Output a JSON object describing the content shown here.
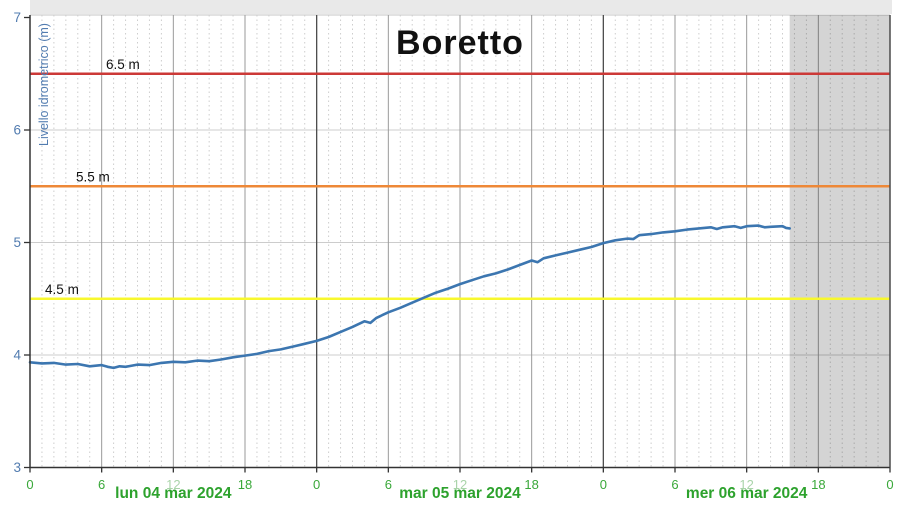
{
  "window": {
    "background": "#ffffff",
    "top_strip_color": "#e9e9e9",
    "plot_border_color": "#c4c4c4"
  },
  "chart_data": {
    "type": "line",
    "title": "Boretto",
    "y_axis": {
      "label": "Livello idrometrico (m)",
      "min": 3,
      "max": 7,
      "ticks": [
        "3",
        "4",
        "5",
        "6",
        "7"
      ],
      "text_color": "#527cb0"
    },
    "x_axis": {
      "ticks": [
        {
          "hour": 0,
          "label": "0",
          "muted": false
        },
        {
          "hour": 6,
          "label": "6",
          "muted": false
        },
        {
          "hour": 12,
          "label": "12",
          "muted": true
        },
        {
          "hour": 18,
          "label": "18",
          "muted": false
        },
        {
          "hour": 24,
          "label": "0",
          "muted": false
        },
        {
          "hour": 30,
          "label": "6",
          "muted": false
        },
        {
          "hour": 36,
          "label": "12",
          "muted": true
        },
        {
          "hour": 42,
          "label": "18",
          "muted": false
        },
        {
          "hour": 48,
          "label": "0",
          "muted": false
        },
        {
          "hour": 54,
          "label": "6",
          "muted": false
        },
        {
          "hour": 60,
          "label": "12",
          "muted": true
        },
        {
          "hour": 66,
          "label": "18",
          "muted": false
        },
        {
          "hour": 72,
          "label": "0",
          "muted": false
        }
      ],
      "date_labels": [
        {
          "text": "lun 04 mar 2024",
          "center_hour": 12
        },
        {
          "text": "mar 05 mar 2024",
          "center_hour": 36
        },
        {
          "text": "mer 06 mar 2024",
          "center_hour": 60
        }
      ],
      "tick_color": "#3aa83a",
      "muted_tick_color": "#aad4aa",
      "date_color": "#2da22d"
    },
    "grid": {
      "minor_step_hours": 1,
      "major_step_hours": 6,
      "day_boundary_hours": [
        24,
        48
      ],
      "minor_color": "#cdcdcd",
      "major_color": "#9a9a9a",
      "day_color": "#4c4c4c",
      "horizontal_color": "#cccccc",
      "horizontal_values": [
        4,
        5,
        6
      ],
      "axis_color": "#333333",
      "right_border_color": "#4c4c4c"
    },
    "thresholds": [
      {
        "label": "6.5 m",
        "value": 6.5,
        "color": "#cc3937",
        "label_hour": 6.36
      },
      {
        "label": "5.5 m",
        "value": 5.5,
        "color": "#ee8837",
        "label_hour": 3.85
      },
      {
        "label": "4.5 m",
        "value": 4.5,
        "color": "#f8f82e",
        "label_hour": 1.26
      }
    ],
    "series": [
      {
        "name": "Livello idrometrico",
        "color": "#3c76b0",
        "points": [
          [
            0,
            3.935
          ],
          [
            1,
            3.925
          ],
          [
            2,
            3.93
          ],
          [
            3,
            3.915
          ],
          [
            4,
            3.92
          ],
          [
            5,
            3.9
          ],
          [
            6,
            3.91
          ],
          [
            6.5,
            3.895
          ],
          [
            7,
            3.885
          ],
          [
            7.5,
            3.9
          ],
          [
            8,
            3.895
          ],
          [
            9,
            3.915
          ],
          [
            10,
            3.91
          ],
          [
            11,
            3.93
          ],
          [
            12,
            3.94
          ],
          [
            13,
            3.935
          ],
          [
            14,
            3.95
          ],
          [
            15,
            3.945
          ],
          [
            16,
            3.96
          ],
          [
            17,
            3.98
          ],
          [
            18,
            3.995
          ],
          [
            19,
            4.01
          ],
          [
            20,
            4.035
          ],
          [
            21,
            4.05
          ],
          [
            22,
            4.075
          ],
          [
            23,
            4.1
          ],
          [
            24,
            4.125
          ],
          [
            25,
            4.16
          ],
          [
            26,
            4.205
          ],
          [
            27,
            4.25
          ],
          [
            28,
            4.3
          ],
          [
            28.5,
            4.285
          ],
          [
            29,
            4.33
          ],
          [
            30,
            4.38
          ],
          [
            31,
            4.42
          ],
          [
            32,
            4.465
          ],
          [
            33,
            4.51
          ],
          [
            34,
            4.555
          ],
          [
            35,
            4.59
          ],
          [
            36,
            4.63
          ],
          [
            37,
            4.665
          ],
          [
            38,
            4.7
          ],
          [
            39,
            4.725
          ],
          [
            40,
            4.76
          ],
          [
            41,
            4.8
          ],
          [
            42,
            4.84
          ],
          [
            42.5,
            4.825
          ],
          [
            43,
            4.86
          ],
          [
            44,
            4.885
          ],
          [
            45,
            4.91
          ],
          [
            46,
            4.935
          ],
          [
            47,
            4.96
          ],
          [
            48,
            4.995
          ],
          [
            49,
            5.02
          ],
          [
            50,
            5.035
          ],
          [
            50.5,
            5.03
          ],
          [
            51,
            5.065
          ],
          [
            52,
            5.075
          ],
          [
            53,
            5.09
          ],
          [
            54,
            5.1
          ],
          [
            55,
            5.115
          ],
          [
            56,
            5.125
          ],
          [
            57,
            5.135
          ],
          [
            57.5,
            5.12
          ],
          [
            58,
            5.135
          ],
          [
            59,
            5.145
          ],
          [
            59.5,
            5.13
          ],
          [
            60,
            5.145
          ],
          [
            61,
            5.15
          ],
          [
            61.5,
            5.135
          ],
          [
            62,
            5.14
          ],
          [
            63,
            5.145
          ],
          [
            63.3,
            5.13
          ],
          [
            63.6,
            5.125
          ]
        ]
      }
    ],
    "forecast_region": {
      "start_hour": 63.6,
      "end_hour": 72,
      "fill": "rgba(0,0,0,0.17)"
    },
    "x_range_hours": [
      0,
      72
    ],
    "y_range": [
      3,
      7
    ],
    "grid_on": true,
    "legend": "none"
  }
}
